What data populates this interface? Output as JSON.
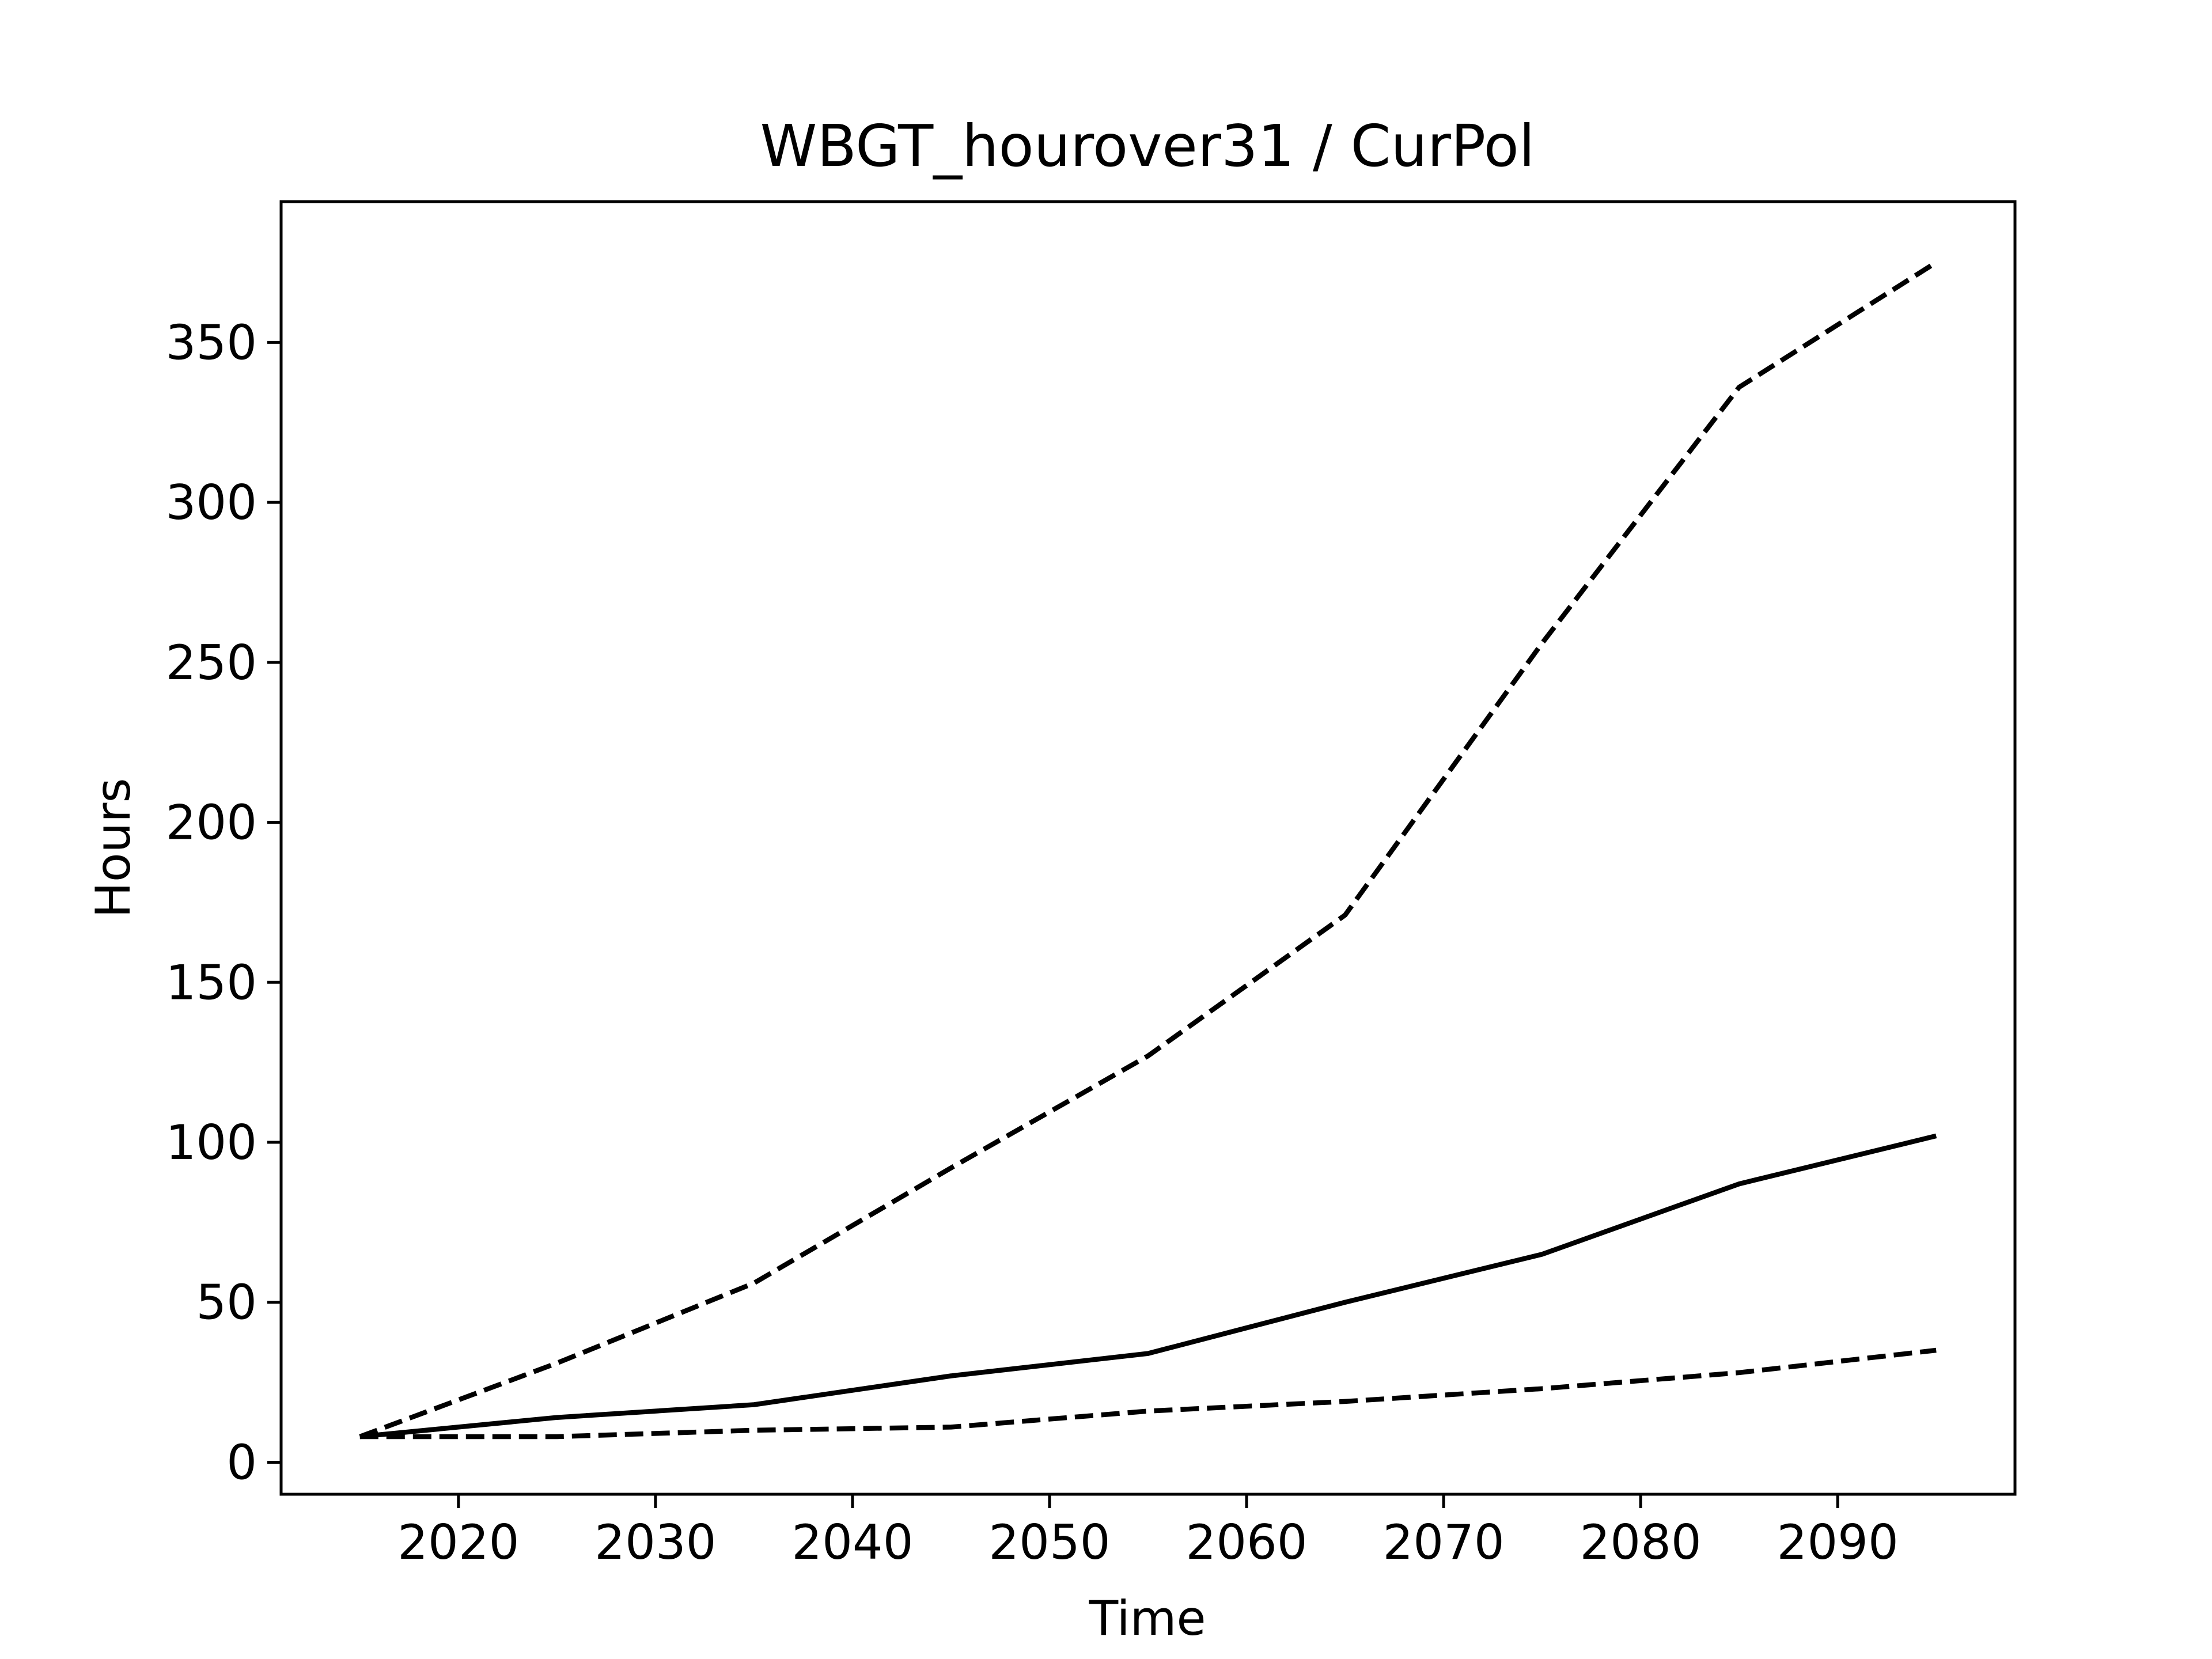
{
  "chart_data": {
    "type": "line",
    "title": "WBGT_hourover31 / CurPol",
    "xlabel": "Time",
    "ylabel": "Hours",
    "xlim": [
      2011,
      2099
    ],
    "ylim": [
      -10,
      394
    ],
    "xticks": [
      2020,
      2030,
      2040,
      2050,
      2060,
      2070,
      2080,
      2090
    ],
    "yticks": [
      0,
      50,
      100,
      150,
      200,
      250,
      300,
      350
    ],
    "grid": false,
    "line_color": "#000000",
    "series": [
      {
        "style": "dashed",
        "x": [
          2015,
          2025,
          2035,
          2045,
          2055,
          2065,
          2075,
          2085,
          2095
        ],
        "y": [
          8,
          31,
          56,
          92,
          127,
          171,
          256,
          336,
          375
        ]
      },
      {
        "style": "solid",
        "x": [
          2015,
          2025,
          2035,
          2045,
          2055,
          2065,
          2075,
          2085,
          2095
        ],
        "y": [
          8,
          14,
          18,
          27,
          34,
          50,
          65,
          87,
          102
        ]
      },
      {
        "style": "dashed",
        "x": [
          2015,
          2025,
          2035,
          2045,
          2055,
          2065,
          2075,
          2085,
          2095
        ],
        "y": [
          8,
          8,
          10,
          11,
          16,
          19,
          23,
          28,
          35
        ]
      }
    ]
  }
}
